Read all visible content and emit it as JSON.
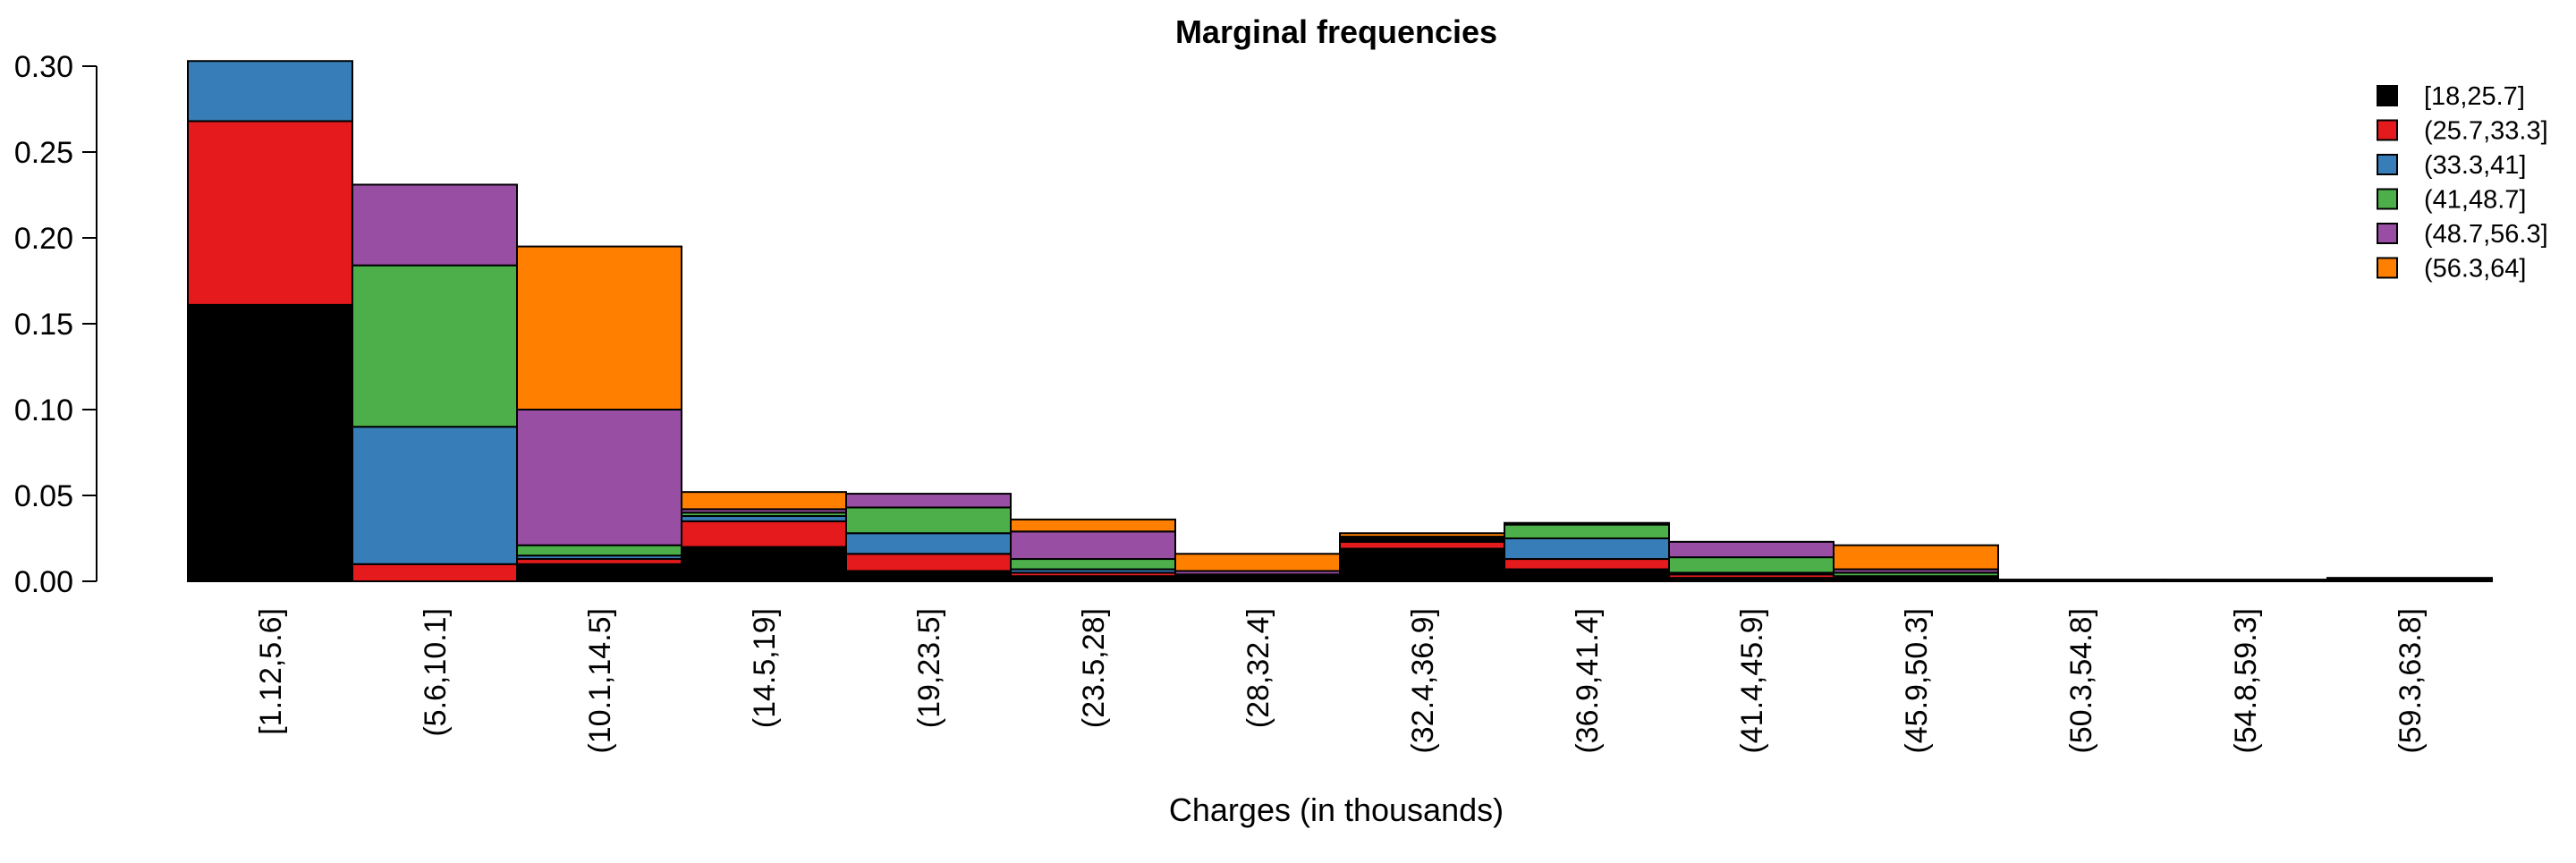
{
  "chart_data": {
    "type": "bar",
    "stacked": true,
    "title": "Marginal frequencies",
    "xlabel": "Charges (in thousands)",
    "ylabel": "",
    "ylim": [
      0,
      0.3
    ],
    "yticks": [
      "0.00",
      "0.05",
      "0.10",
      "0.15",
      "0.20",
      "0.25",
      "0.30"
    ],
    "grid": false,
    "legend_position": "top-right",
    "categories": [
      "[1.12,5.6]",
      "(5.6,10.1]",
      "(10.1,14.5]",
      "(14.5,19]",
      "(19,23.5]",
      "(23.5,28]",
      "(28,32.4]",
      "(32.4,36.9]",
      "(36.9,41.4]",
      "(41.4,45.9]",
      "(45.9,50.3]",
      "(50.3,54.8]",
      "(54.8,59.3]",
      "(59.3,63.8]"
    ],
    "series": [
      {
        "name": "[18,25.7]",
        "color": "#000000",
        "values": [
          0.161,
          0.0,
          0.01,
          0.02,
          0.006,
          0.003,
          0.001,
          0.019,
          0.007,
          0.002,
          0.001,
          0.0,
          0.0,
          0.001
        ]
      },
      {
        "name": "(25.7,33.3]",
        "color": "#E41A1C",
        "values": [
          0.107,
          0.01,
          0.003,
          0.015,
          0.01,
          0.002,
          0.001,
          0.004,
          0.006,
          0.002,
          0.001,
          0.0,
          0.0,
          0.0
        ]
      },
      {
        "name": "(33.3,41]",
        "color": "#377EB8",
        "values": [
          0.035,
          0.08,
          0.002,
          0.003,
          0.012,
          0.002,
          0.001,
          0.001,
          0.012,
          0.001,
          0.001,
          0.0,
          0.0,
          0.0
        ]
      },
      {
        "name": "(41,48.7]",
        "color": "#4DAF4A",
        "values": [
          0.0,
          0.094,
          0.006,
          0.002,
          0.015,
          0.006,
          0.001,
          0.001,
          0.008,
          0.009,
          0.002,
          0.0,
          0.0,
          0.0
        ]
      },
      {
        "name": "(48.7,56.3]",
        "color": "#984EA3",
        "values": [
          0.0,
          0.047,
          0.079,
          0.002,
          0.008,
          0.016,
          0.002,
          0.001,
          0.001,
          0.009,
          0.002,
          0.0,
          0.0,
          0.0
        ]
      },
      {
        "name": "(56.3,64]",
        "color": "#FF7F00",
        "values": [
          0.0,
          0.0,
          0.095,
          0.01,
          0.0,
          0.007,
          0.01,
          0.002,
          0.0,
          0.0,
          0.014,
          0.001,
          0.001,
          0.001
        ]
      }
    ]
  }
}
